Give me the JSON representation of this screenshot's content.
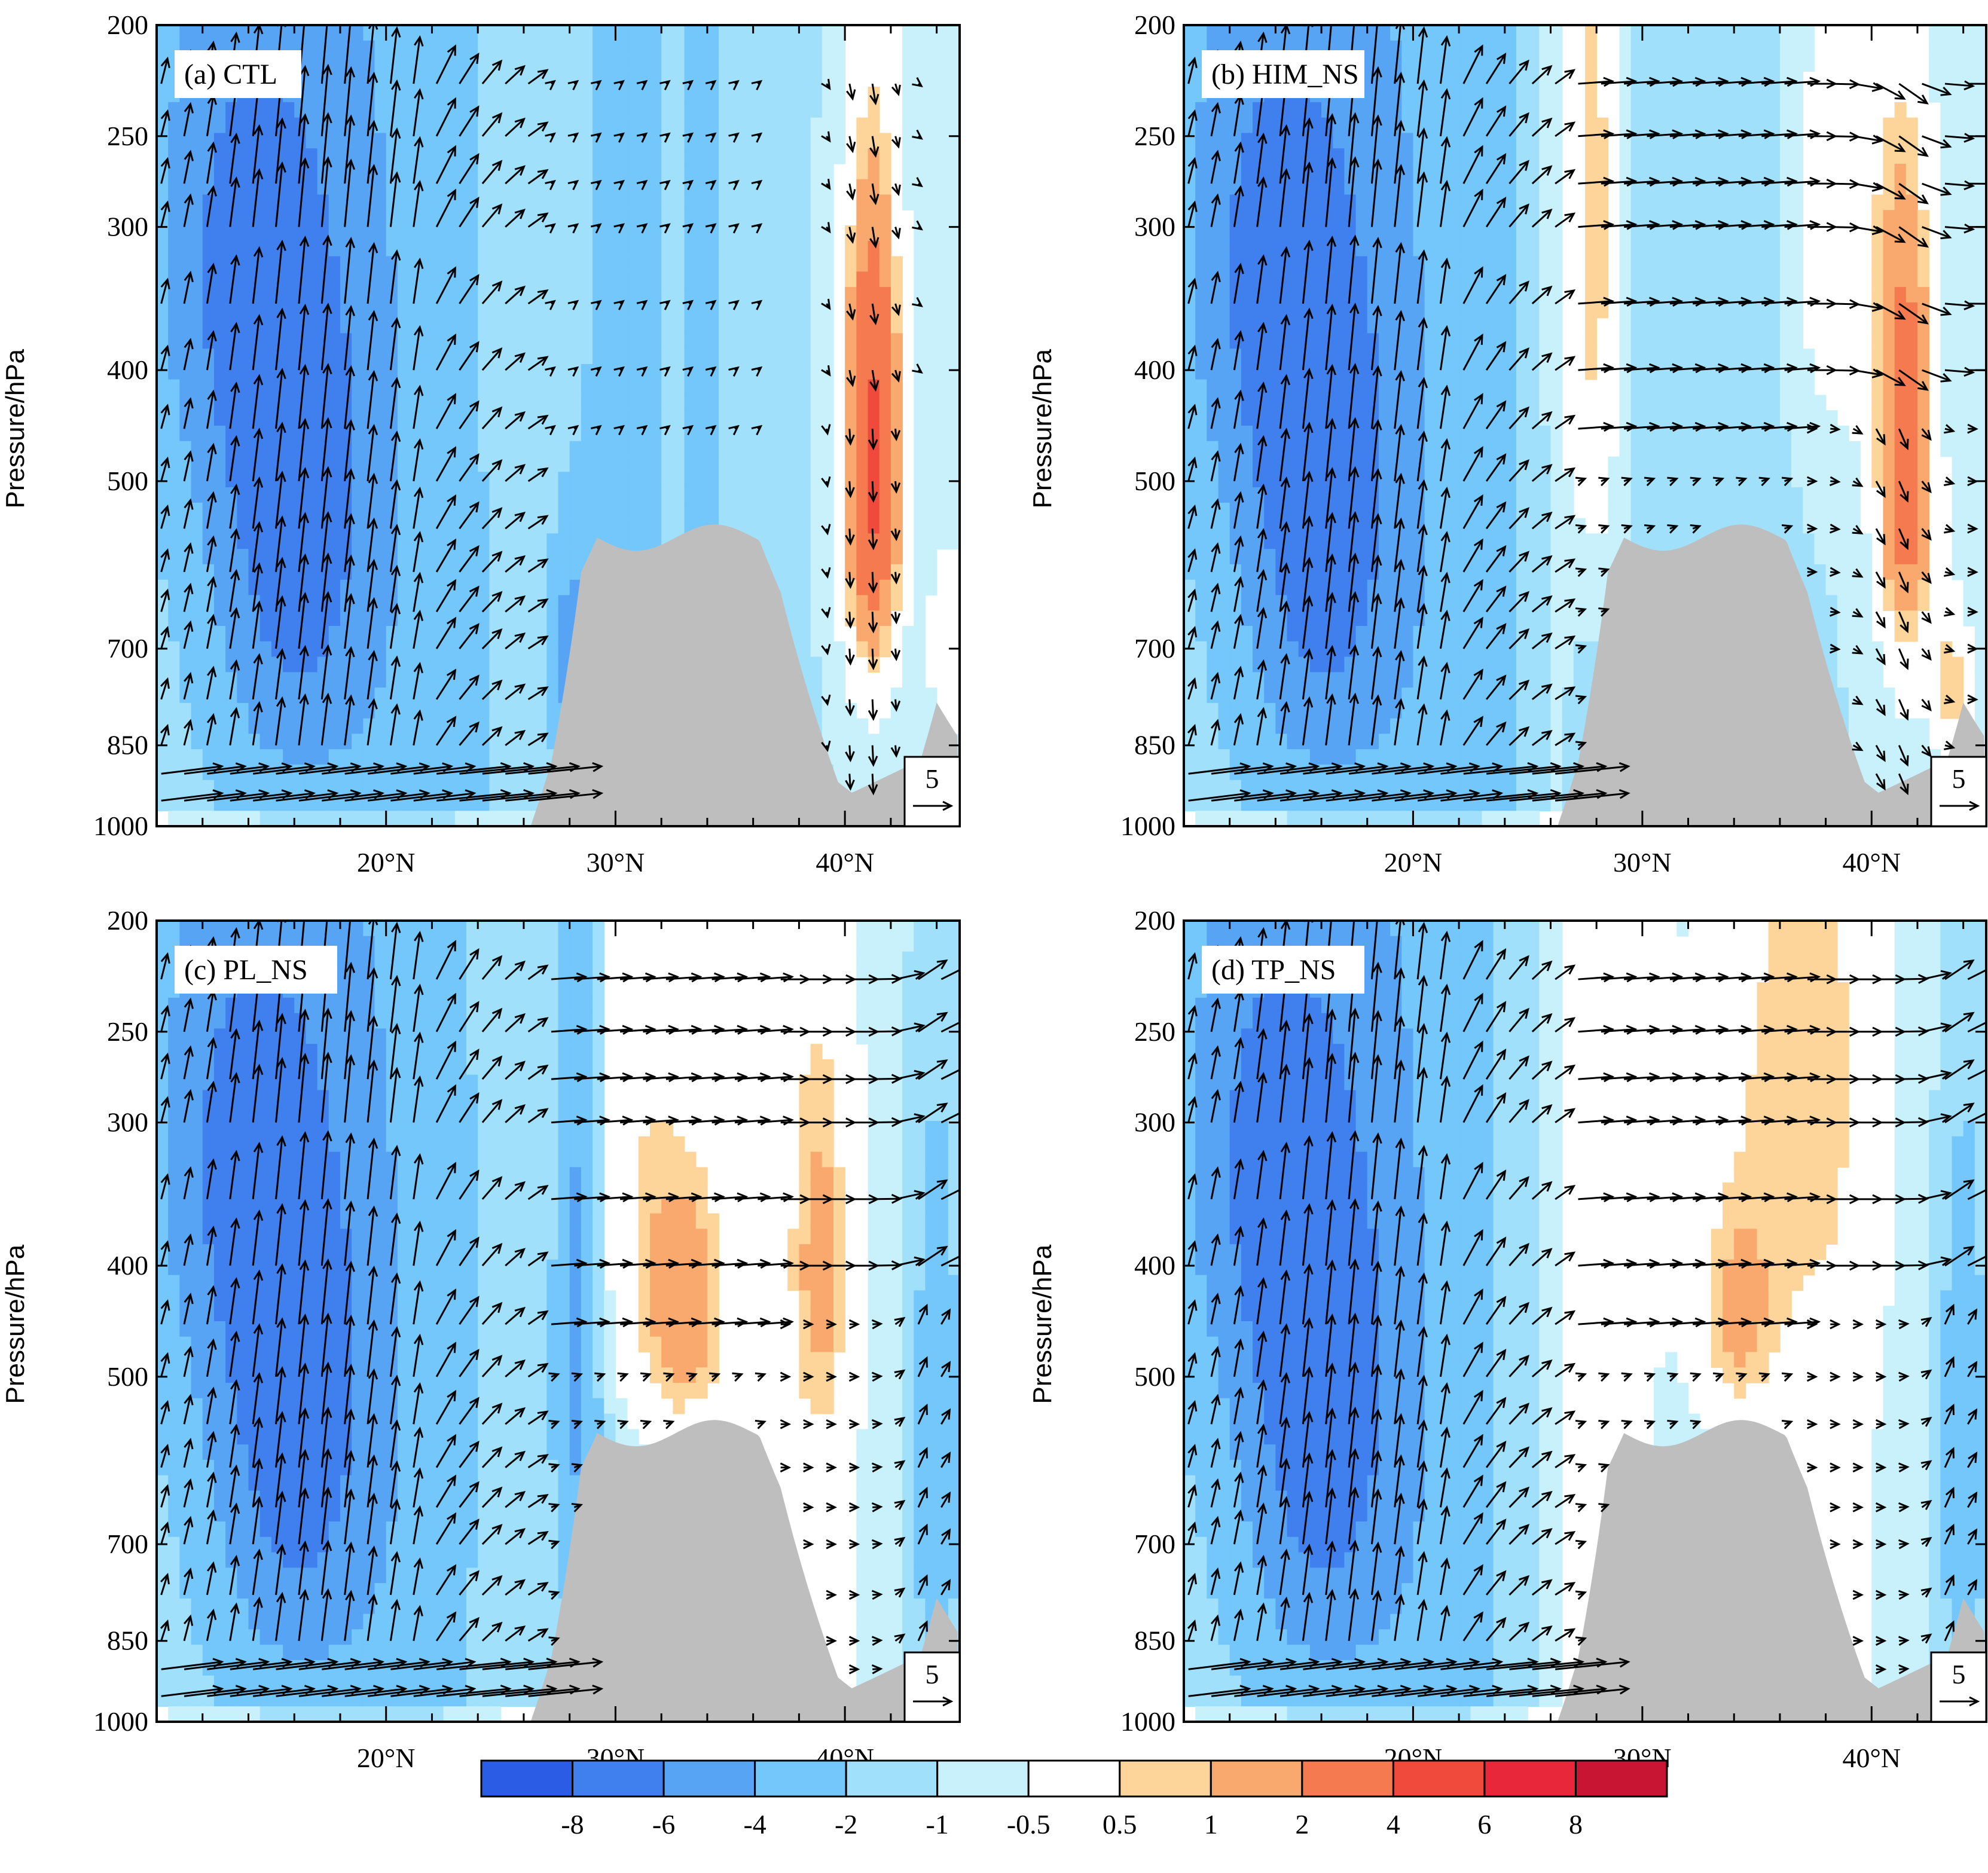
{
  "chart_data": [
    {
      "type": "heatmap",
      "panel_title": "(a) CTL",
      "ylabel": "Pressure/hPa",
      "y_ticks": [
        200,
        250,
        300,
        400,
        500,
        700,
        850,
        1000
      ],
      "y_scale": "log",
      "ylim": [
        1000,
        200
      ],
      "x_ticks": [
        "20°N",
        "30°N",
        "40°N"
      ],
      "x_tick_values": [
        20,
        30,
        40
      ],
      "xlim": [
        10,
        45
      ],
      "reference_vector": "5",
      "features": {
        "upper_right_warm_center_lat": 41,
        "upper_right_warm_level": 400,
        "band_30N": "blue",
        "band_34N": "lightblue"
      }
    },
    {
      "type": "heatmap",
      "panel_title": "(b) HIM_NS",
      "ylabel": "Pressure/hPa",
      "y_ticks": [
        200,
        250,
        300,
        400,
        500,
        700,
        850,
        1000
      ],
      "y_scale": "log",
      "ylim": [
        1000,
        200
      ],
      "x_ticks": [
        "20°N",
        "30°N",
        "40°N"
      ],
      "x_tick_values": [
        20,
        30,
        40
      ],
      "xlim": [
        10,
        45
      ],
      "reference_vector": "5",
      "features": {
        "upper_right_warm_center_lat": 41,
        "upper_right_warm_level": 450,
        "band_30N": "white-orange",
        "band_34N": "lightblue"
      }
    },
    {
      "type": "heatmap",
      "panel_title": "(c) PL_NS",
      "ylabel": "Pressure/hPa",
      "y_ticks": [
        200,
        250,
        300,
        400,
        500,
        700,
        850,
        1000
      ],
      "y_scale": "log",
      "ylim": [
        1000,
        200
      ],
      "x_ticks": [
        "20°N",
        "30°N",
        "40°N"
      ],
      "x_tick_values": [
        20,
        30,
        40
      ],
      "xlim": [
        10,
        45
      ],
      "reference_vector": "5",
      "features": {
        "upper_right_warm_center_lat": 33,
        "upper_right_warm_level": 430,
        "band_30N": "blue",
        "band_34N": "white-orange"
      }
    },
    {
      "type": "heatmap",
      "panel_title": "(d) TP_NS",
      "ylabel": "Pressure/hPa",
      "y_ticks": [
        200,
        250,
        300,
        400,
        500,
        700,
        850,
        1000
      ],
      "y_scale": "log",
      "ylim": [
        1000,
        200
      ],
      "x_ticks": [
        "20°N",
        "30°N",
        "40°N"
      ],
      "x_tick_values": [
        20,
        30,
        40
      ],
      "xlim": [
        10,
        45
      ],
      "reference_vector": "5",
      "features": {
        "upper_right_warm_center_lat": 34,
        "upper_right_warm_level": 450,
        "band_30N": "white",
        "band_34N": "white-orange"
      }
    }
  ],
  "colorbar": {
    "colors": [
      "#2b5ce6",
      "#3f80ee",
      "#57a4f5",
      "#74c7fa",
      "#a0e0fb",
      "#c9f1fc",
      "#ffffff",
      "#fdd59b",
      "#f9a96e",
      "#f57a50",
      "#ef4a3c",
      "#e8273a",
      "#c81533"
    ],
    "labels": [
      "-8",
      "-6",
      "-4",
      "-2",
      "-1",
      "-0.5",
      "0.5",
      "1",
      "2",
      "4",
      "6",
      "8"
    ]
  },
  "terrain_color": "#bebebe",
  "arrow_color": "#000000"
}
